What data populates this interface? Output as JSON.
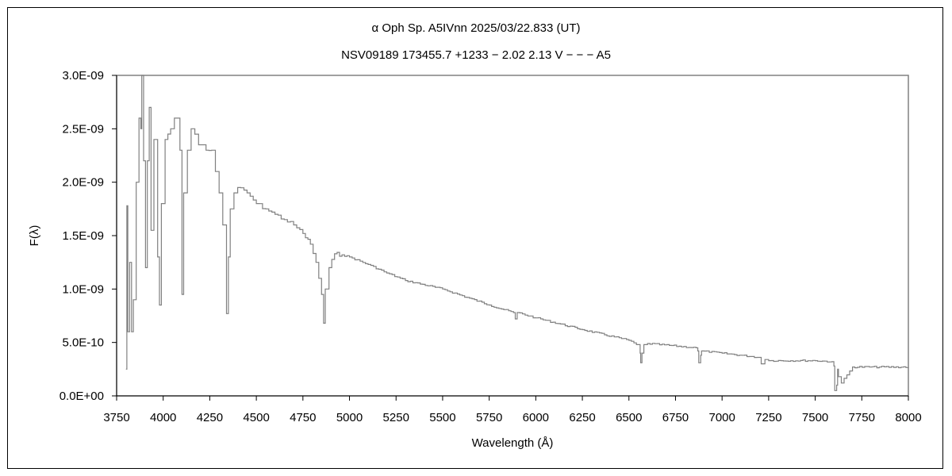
{
  "chart_data": {
    "type": "line",
    "title": "α Oph    Sp. A5IVnn    2025/03/22.833 (UT)",
    "subtitle": "NSV09189 173455.7 +1233 − 2.02 2.13 V − − − A5",
    "xlabel": "Wavelength (Å)",
    "ylabel": "F(λ)",
    "xlim": [
      3750,
      8000
    ],
    "ylim": [
      0,
      3e-09
    ],
    "x_ticks": [
      "3750",
      "4000",
      "4250",
      "4500",
      "4750",
      "5000",
      "5250",
      "5500",
      "5750",
      "6000",
      "6250",
      "6500",
      "6750",
      "7000",
      "7250",
      "7500",
      "7750",
      "8000"
    ],
    "y_ticks": [
      "0.0E+00",
      "5.0E-10",
      "1.0E-09",
      "1.5E-09",
      "2.0E-09",
      "2.5E-09",
      "3.0E-09"
    ],
    "grid": false,
    "line_color": "#808080",
    "series": [
      {
        "name": "F(λ)",
        "unit_scale": 1e-09,
        "x": [
          3800,
          3805,
          3810,
          3820,
          3830,
          3840,
          3855,
          3870,
          3880,
          3885,
          3895,
          3905,
          3915,
          3925,
          3935,
          3950,
          3960,
          3970,
          3980,
          3990,
          4010,
          4040,
          4060,
          4070,
          4090,
          4101,
          4110,
          4130,
          4150,
          4170,
          4190,
          4210,
          4230,
          4260,
          4280,
          4300,
          4320,
          4340,
          4350,
          4360,
          4380,
          4400,
          4450,
          4500,
          4550,
          4600,
          4650,
          4700,
          4750,
          4790,
          4820,
          4850,
          4861,
          4870,
          4890,
          4920,
          4960,
          5000,
          5100,
          5200,
          5300,
          5500,
          5750,
          5880,
          5890,
          5900,
          6000,
          6250,
          6500,
          6540,
          6560,
          6563,
          6570,
          6580,
          6600,
          6860,
          6870,
          6875,
          6885,
          6890,
          7000,
          7200,
          7210,
          7230,
          7250,
          7500,
          7590,
          7600,
          7605,
          7615,
          7620,
          7625,
          7640,
          7700,
          8000
        ],
        "y": [
          0.25,
          1.78,
          0.6,
          1.25,
          0.6,
          0.9,
          2.0,
          2.6,
          2.5,
          3.0,
          2.2,
          1.2,
          2.2,
          2.7,
          1.55,
          2.4,
          2.4,
          1.3,
          0.85,
          1.8,
          2.4,
          2.5,
          2.6,
          2.6,
          2.3,
          0.95,
          1.9,
          2.3,
          2.5,
          2.45,
          2.35,
          2.35,
          2.3,
          2.3,
          2.1,
          1.9,
          1.6,
          0.77,
          1.3,
          1.75,
          1.9,
          1.95,
          1.9,
          1.8,
          1.75,
          1.7,
          1.65,
          1.6,
          1.52,
          1.42,
          1.25,
          0.95,
          0.68,
          1.0,
          1.2,
          1.33,
          1.32,
          1.3,
          1.23,
          1.15,
          1.08,
          1.0,
          0.85,
          0.78,
          0.72,
          0.78,
          0.73,
          0.62,
          0.52,
          0.48,
          0.4,
          0.31,
          0.4,
          0.48,
          0.49,
          0.45,
          0.42,
          0.31,
          0.38,
          0.42,
          0.4,
          0.36,
          0.3,
          0.34,
          0.33,
          0.33,
          0.32,
          0.28,
          0.05,
          0.1,
          0.25,
          0.18,
          0.12,
          0.27,
          0.27
        ]
      }
    ]
  }
}
